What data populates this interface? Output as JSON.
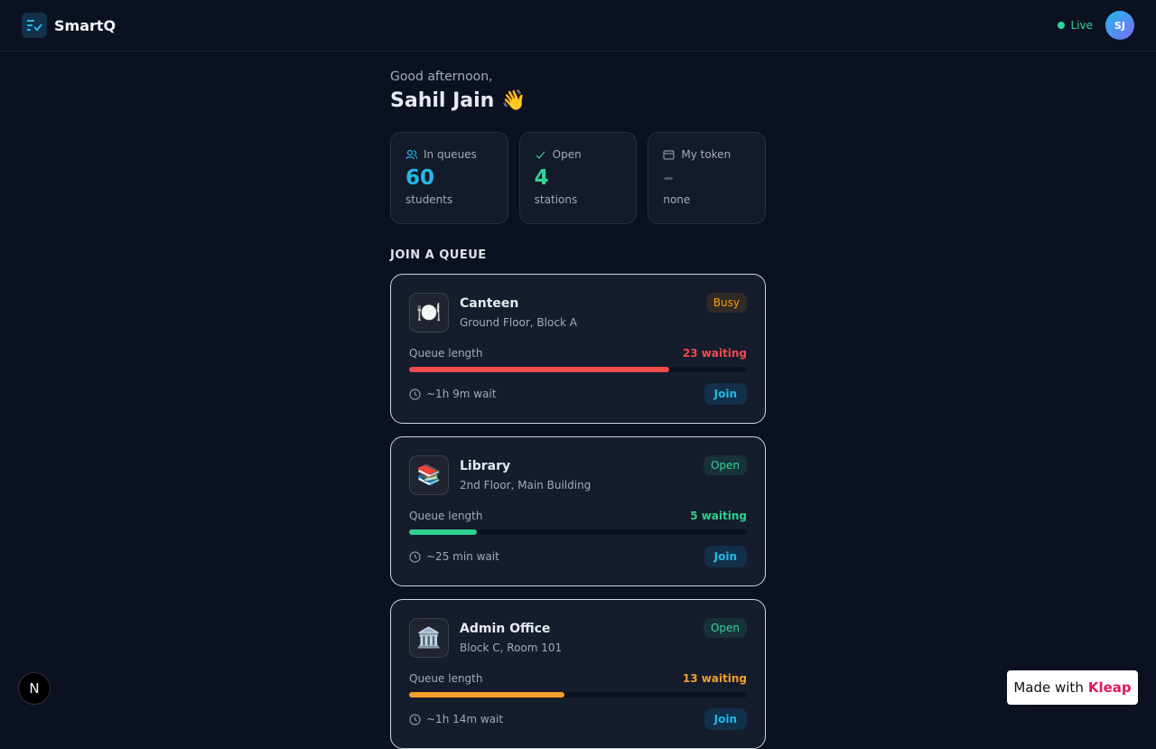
{
  "header": {
    "brand": "SmartQ",
    "status": "Live",
    "avatar": "SJ"
  },
  "greeting": {
    "subtitle": "Good afternoon,",
    "name": "Sahil Jain 👋"
  },
  "stats": [
    {
      "label": "In queues",
      "value": 60,
      "unit": "students",
      "color": "#22b8e8"
    },
    {
      "label": "Open",
      "value": 4,
      "unit": "stations",
      "color": "#34d399"
    },
    {
      "label": "My token",
      "value": "–",
      "unit": "none",
      "color": "#4b5568"
    }
  ],
  "section_title": "JOIN A QUEUE",
  "queues": [
    {
      "icon": "🍽️",
      "name": "Canteen",
      "location": "Ground Floor, Block A",
      "status": "Busy",
      "queue_label": "Queue length",
      "waiting": "23 waiting",
      "fill_percent": 77,
      "color": "#f04b4b",
      "status_color": "#f59e0b",
      "wait": "~1h 9m wait",
      "action": "Join"
    },
    {
      "icon": "📚",
      "name": "Library",
      "location": "2nd Floor, Main Building",
      "status": "Open",
      "queue_label": "Queue length",
      "waiting": "5 waiting",
      "fill_percent": 20,
      "color": "#2ecf8f",
      "status_color": "#34d399",
      "wait": "~25 min wait",
      "action": "Join"
    },
    {
      "icon": "🏛️",
      "name": "Admin Office",
      "location": "Block C, Room 101",
      "status": "Open",
      "queue_label": "Queue length",
      "waiting": "13 waiting",
      "fill_percent": 46,
      "color": "#f59e2b",
      "status_color": "#34d399",
      "wait": "~1h 14m wait",
      "action": "Join"
    }
  ],
  "dev_badge": "N",
  "made_with": {
    "prefix": "Made with",
    "brand": "Kleap"
  }
}
